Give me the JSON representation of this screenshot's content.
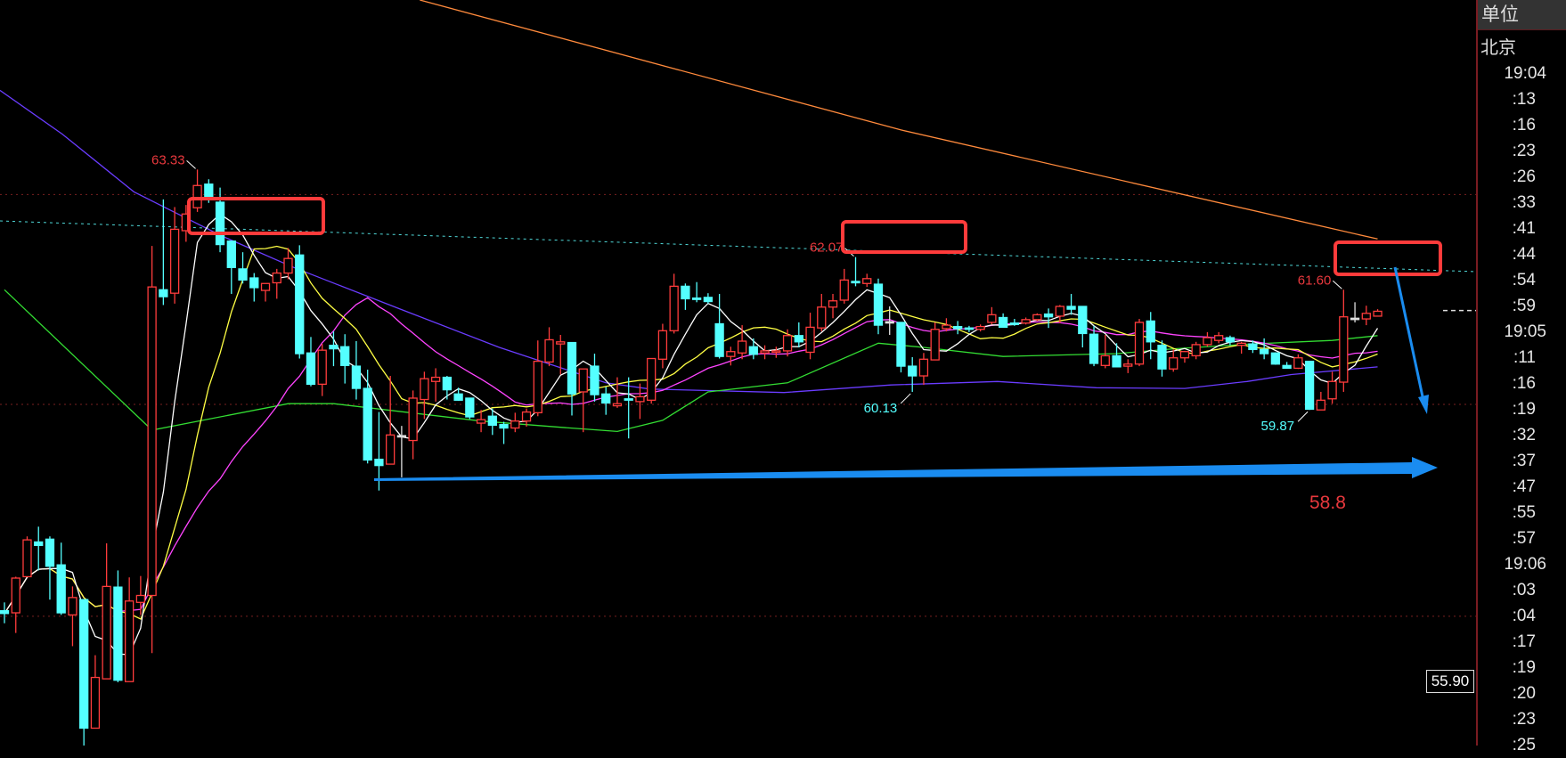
{
  "header": {
    "unit_label": "单位",
    "timezone_label": "北京"
  },
  "time_axis": [
    "19:04",
    ":13",
    ":16",
    ":23",
    ":26",
    ":33",
    ":41",
    ":44",
    ":54",
    ":59",
    "19:05",
    ":11",
    ":16",
    ":19",
    ":32",
    ":37",
    ":47",
    ":55",
    ":57",
    "19:06",
    ":03",
    ":04",
    ":17",
    ":19",
    ":20",
    ":23",
    ":25"
  ],
  "current_price_box": "55.90",
  "chart_data": {
    "type": "candlestick",
    "ylim": [
      55.04,
      65.77
    ],
    "grid": false,
    "colors": {
      "up": "#ff3c3c",
      "down": "#54ffff",
      "doji": "#e0e0e0",
      "ma5": "#ffffff",
      "ma10": "#ffff44",
      "ma20": "#ff44ff",
      "green_ma": "#33dd33",
      "purple_ma": "#6a3cff",
      "orange_ma": "#ff8a3c",
      "annotation_box": "#ff3b3b",
      "annotation_arrow": "#1a8cf0",
      "high_label": "#e8383d",
      "low_label": "#54ffff"
    },
    "candles": [
      [
        56.98,
        57.1,
        56.8,
        56.94
      ],
      [
        56.95,
        57.47,
        56.66,
        57.45
      ],
      [
        57.47,
        58.05,
        57.47,
        58.0
      ],
      [
        57.97,
        58.19,
        57.56,
        57.92
      ],
      [
        58.01,
        58.05,
        57.14,
        57.62
      ],
      [
        57.64,
        57.96,
        56.92,
        56.95
      ],
      [
        56.92,
        57.33,
        56.47,
        57.17
      ],
      [
        57.14,
        57.14,
        55.03,
        55.29
      ],
      [
        55.29,
        56.34,
        55.29,
        56.02
      ],
      [
        56.0,
        57.95,
        56.0,
        57.33
      ],
      [
        57.32,
        57.56,
        55.95,
        55.98
      ],
      [
        55.96,
        57.46,
        55.96,
        57.12
      ],
      [
        57.1,
        57.48,
        56.92,
        57.2
      ],
      [
        57.2,
        62.23,
        56.37,
        61.64
      ],
      [
        61.6,
        62.9,
        61.38,
        61.5
      ],
      [
        61.55,
        62.79,
        61.4,
        62.47
      ],
      [
        62.45,
        62.82,
        62.29,
        62.69
      ],
      [
        62.78,
        63.33,
        62.72,
        63.1
      ],
      [
        63.12,
        63.19,
        62.85,
        62.93
      ],
      [
        62.86,
        63.07,
        62.14,
        62.25
      ],
      [
        62.3,
        62.3,
        61.54,
        61.92
      ],
      [
        61.9,
        62.14,
        61.69,
        61.74
      ],
      [
        61.77,
        61.84,
        61.43,
        61.63
      ],
      [
        61.59,
        61.69,
        61.43,
        61.69
      ],
      [
        61.7,
        61.9,
        61.47,
        61.84
      ],
      [
        61.84,
        62.2,
        61.75,
        62.05
      ],
      [
        62.1,
        62.24,
        60.61,
        60.68
      ],
      [
        60.69,
        60.92,
        60.21,
        60.24
      ],
      [
        60.24,
        60.82,
        60.07,
        60.73
      ],
      [
        60.8,
        61.0,
        60.5,
        60.75
      ],
      [
        60.78,
        60.96,
        60.25,
        60.51
      ],
      [
        60.5,
        60.86,
        60.02,
        60.18
      ],
      [
        60.18,
        60.45,
        59.1,
        59.15
      ],
      [
        59.16,
        59.84,
        58.71,
        59.07
      ],
      [
        59.09,
        60.36,
        59.09,
        59.51
      ],
      [
        59.5,
        59.64,
        58.9,
        59.5
      ],
      [
        59.43,
        60.15,
        59.16,
        60.04
      ],
      [
        60.02,
        60.42,
        59.74,
        60.32
      ],
      [
        60.28,
        60.47,
        59.99,
        60.34
      ],
      [
        60.34,
        60.36,
        60.02,
        60.16
      ],
      [
        60.1,
        60.19,
        60.0,
        60.01
      ],
      [
        60.04,
        60.04,
        59.74,
        59.77
      ],
      [
        59.68,
        59.87,
        59.55,
        59.73
      ],
      [
        59.78,
        59.89,
        59.51,
        59.65
      ],
      [
        59.66,
        59.7,
        59.38,
        59.61
      ],
      [
        59.61,
        59.83,
        59.55,
        59.71
      ],
      [
        59.71,
        59.89,
        59.63,
        59.84
      ],
      [
        59.83,
        60.87,
        59.78,
        60.57
      ],
      [
        60.56,
        61.06,
        60.5,
        60.88
      ],
      [
        60.82,
        60.95,
        60.38,
        60.85
      ],
      [
        60.84,
        60.84,
        59.79,
        60.1
      ],
      [
        60.13,
        60.46,
        59.55,
        60.46
      ],
      [
        60.5,
        60.68,
        59.99,
        60.09
      ],
      [
        60.1,
        60.2,
        59.8,
        59.97
      ],
      [
        59.93,
        60.34,
        59.9,
        59.96
      ],
      [
        60.03,
        60.34,
        59.46,
        60.02
      ],
      [
        59.99,
        60.25,
        59.74,
        60.06
      ],
      [
        60.01,
        60.61,
        59.96,
        60.61
      ],
      [
        60.6,
        61.11,
        60.47,
        61.01
      ],
      [
        61.01,
        61.83,
        60.97,
        61.65
      ],
      [
        61.65,
        61.69,
        61.31,
        61.47
      ],
      [
        61.48,
        61.71,
        61.42,
        61.46
      ],
      [
        61.49,
        61.55,
        61.4,
        61.43
      ],
      [
        61.11,
        61.54,
        60.61,
        60.64
      ],
      [
        60.64,
        60.78,
        60.51,
        60.71
      ],
      [
        60.69,
        61.09,
        60.6,
        60.86
      ],
      [
        60.78,
        60.9,
        60.6,
        60.67
      ],
      [
        60.69,
        60.8,
        60.6,
        60.72
      ],
      [
        60.7,
        60.78,
        60.62,
        60.72
      ],
      [
        60.72,
        61.03,
        60.64,
        60.94
      ],
      [
        60.94,
        61.13,
        60.77,
        60.85
      ],
      [
        60.7,
        61.27,
        60.6,
        61.06
      ],
      [
        61.05,
        61.54,
        61.0,
        61.35
      ],
      [
        61.35,
        61.54,
        61.19,
        61.44
      ],
      [
        61.45,
        61.9,
        61.4,
        61.74
      ],
      [
        61.72,
        62.07,
        61.65,
        61.7
      ],
      [
        61.69,
        61.83,
        61.64,
        61.76
      ],
      [
        61.68,
        61.76,
        60.96,
        61.09
      ],
      [
        61.14,
        61.36,
        60.95,
        61.14
      ],
      [
        61.13,
        61.13,
        60.41,
        60.5
      ],
      [
        60.5,
        60.63,
        60.13,
        60.36
      ],
      [
        60.36,
        60.69,
        60.23,
        60.6
      ],
      [
        60.59,
        61.13,
        60.59,
        61.03
      ],
      [
        61.04,
        61.19,
        61.0,
        61.09
      ],
      [
        61.07,
        61.15,
        60.96,
        61.04
      ],
      [
        61.05,
        61.08,
        60.99,
        61.03
      ],
      [
        61.03,
        61.1,
        61.0,
        61.07
      ],
      [
        61.13,
        61.35,
        61.1,
        61.24
      ],
      [
        61.2,
        61.26,
        61.06,
        61.06
      ],
      [
        61.12,
        61.18,
        61.08,
        61.1
      ],
      [
        61.12,
        61.2,
        61.1,
        61.17
      ],
      [
        61.17,
        61.26,
        61.15,
        61.24
      ],
      [
        61.25,
        61.33,
        61.05,
        61.21
      ],
      [
        61.22,
        61.38,
        61.12,
        61.36
      ],
      [
        61.36,
        61.54,
        61.24,
        61.32
      ],
      [
        61.36,
        61.36,
        60.77,
        60.97
      ],
      [
        60.96,
        61.08,
        60.5,
        60.54
      ],
      [
        60.51,
        60.95,
        60.47,
        60.65
      ],
      [
        60.65,
        60.83,
        60.49,
        60.49
      ],
      [
        60.5,
        60.6,
        60.4,
        60.53
      ],
      [
        60.53,
        61.18,
        60.5,
        61.13
      ],
      [
        61.15,
        61.28,
        60.6,
        60.85
      ],
      [
        60.8,
        60.87,
        60.35,
        60.46
      ],
      [
        60.46,
        60.74,
        60.42,
        60.62
      ],
      [
        60.62,
        60.72,
        60.55,
        60.71
      ],
      [
        60.65,
        60.85,
        60.6,
        60.81
      ],
      [
        60.81,
        60.99,
        60.78,
        60.91
      ],
      [
        60.87,
        60.99,
        60.83,
        60.94
      ],
      [
        60.91,
        60.94,
        60.8,
        60.85
      ],
      [
        60.8,
        60.85,
        60.68,
        60.83
      ],
      [
        60.82,
        60.87,
        60.69,
        60.74
      ],
      [
        60.74,
        60.9,
        60.6,
        60.68
      ],
      [
        60.69,
        60.7,
        60.52,
        60.53
      ],
      [
        60.51,
        60.56,
        60.47,
        60.47
      ],
      [
        60.47,
        60.67,
        60.46,
        60.62
      ],
      [
        60.57,
        60.57,
        59.87,
        59.88
      ],
      [
        59.87,
        60.13,
        59.87,
        60.01
      ],
      [
        60.03,
        60.42,
        59.96,
        60.28
      ],
      [
        60.27,
        61.6,
        60.13,
        61.21
      ],
      [
        61.19,
        61.42,
        61.13,
        61.19
      ],
      [
        61.18,
        61.37,
        61.09,
        61.26
      ],
      [
        61.22,
        61.32,
        61.22,
        61.29
      ]
    ],
    "moving_averages_computed": [
      5,
      10,
      20
    ],
    "extra_lines": {
      "green_ma": [
        [
          0,
          61.6
        ],
        [
          13,
          59.58
        ],
        [
          25,
          59.96
        ],
        [
          29,
          59.96
        ],
        [
          42,
          59.71
        ],
        [
          49,
          59.62
        ],
        [
          54,
          59.56
        ],
        [
          58,
          59.72
        ],
        [
          62,
          60.13
        ],
        [
          69,
          60.26
        ],
        [
          77,
          60.83
        ],
        [
          81,
          60.77
        ],
        [
          88,
          60.64
        ],
        [
          98,
          60.68
        ],
        [
          103,
          60.75
        ],
        [
          110,
          60.82
        ],
        [
          117,
          60.87
        ],
        [
          121,
          60.94
        ]
      ],
      "purple_ma": [
        [
          -0.4,
          64.47
        ],
        [
          5.1,
          63.84
        ],
        [
          11.4,
          63.01
        ],
        [
          13.7,
          62.82
        ],
        [
          19.2,
          62.37
        ],
        [
          25.5,
          61.92
        ],
        [
          29.4,
          61.67
        ],
        [
          34.9,
          61.32
        ],
        [
          43.6,
          60.77
        ],
        [
          53,
          60.26
        ],
        [
          56.9,
          60.17
        ],
        [
          68.7,
          60.12
        ],
        [
          78.1,
          60.23
        ],
        [
          87.5,
          60.28
        ],
        [
          96.2,
          60.19
        ],
        [
          104,
          60.18
        ],
        [
          109.5,
          60.28
        ],
        [
          113.4,
          60.38
        ],
        [
          121,
          60.49
        ]
      ],
      "orange_ma": [
        [
          36.6,
          65.77
        ],
        [
          79,
          63.9
        ],
        [
          121,
          62.33
        ]
      ]
    },
    "dotted_trendline": {
      "start": 62.59,
      "end": 61.86
    },
    "reference_levels": [
      62.97,
      59.95,
      56.9
    ],
    "last_price_marker": 61.3,
    "annotations": {
      "high_labels": [
        {
          "text": "63.33",
          "bar": 17,
          "price": 63.33
        },
        {
          "text": "62.07",
          "bar": 75,
          "price": 62.07
        },
        {
          "text": "61.60",
          "bar": 118,
          "price": 61.6
        }
      ],
      "low_labels": [
        {
          "text": "60.13",
          "bar": 80,
          "price": 60.13
        },
        {
          "text": "59.87",
          "bar": 115,
          "price": 59.87
        }
      ],
      "target_label": "58.8"
    }
  }
}
